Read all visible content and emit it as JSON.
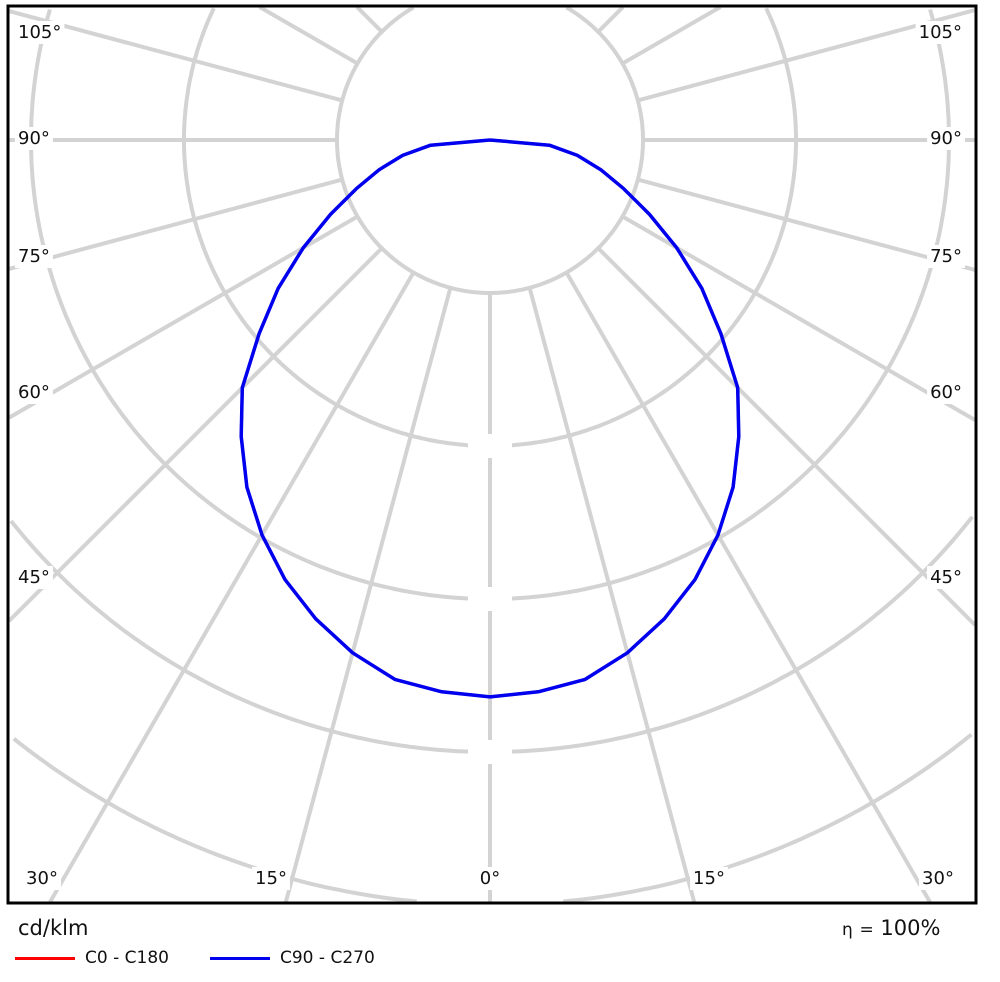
{
  "chart_data": {
    "type": "polar-line",
    "unit_label": "cd/klm",
    "efficiency": {
      "symbol": "η",
      "equals": "=",
      "value": "100%"
    },
    "angle_labels_side": [
      "105°",
      "90°",
      "75°",
      "60°",
      "45°"
    ],
    "angle_labels_bottom": [
      "30°",
      "15°",
      "0°",
      "15°",
      "30°"
    ],
    "radial_axis": "no radial tick values shown; values in units of grid rings",
    "grid": true,
    "angles_deg": [
      0,
      5,
      10,
      15,
      20,
      25,
      30,
      35,
      40,
      45,
      50,
      55,
      60,
      65,
      70,
      75,
      80,
      85,
      90
    ],
    "series": [
      {
        "name": "C0 - C180",
        "color": "#ff0000",
        "values": [
          3.64,
          3.62,
          3.58,
          3.47,
          3.33,
          3.17,
          2.98,
          2.77,
          2.53,
          2.29,
          1.97,
          1.69,
          1.41,
          1.15,
          0.93,
          0.75,
          0.58,
          0.39,
          0
        ]
      },
      {
        "name": "C90 - C270",
        "color": "#0000ee",
        "values": [
          3.64,
          3.62,
          3.58,
          3.47,
          3.33,
          3.17,
          2.98,
          2.77,
          2.53,
          2.29,
          1.97,
          1.69,
          1.41,
          1.15,
          0.93,
          0.75,
          0.58,
          0.39,
          0
        ]
      }
    ],
    "legend": "bottom-left"
  }
}
